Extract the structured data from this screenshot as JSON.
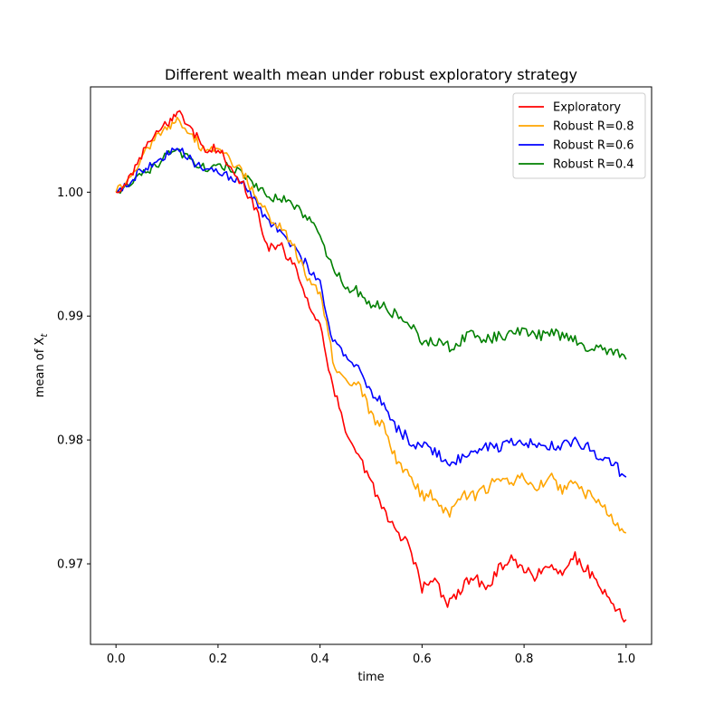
{
  "chart_data": {
    "type": "line",
    "title": "Different wealth mean under robust exploratory strategy",
    "xlabel": "time",
    "ylabel": "mean of X",
    "ylabel_subscript": "t",
    "xlim": [
      -0.05,
      1.05
    ],
    "ylim": [
      0.9635,
      1.0085
    ],
    "xticks": [
      0.0,
      0.2,
      0.4,
      0.6,
      0.8,
      1.0
    ],
    "xtick_labels": [
      "0.0",
      "0.2",
      "0.4",
      "0.6",
      "0.8",
      "1.0"
    ],
    "yticks": [
      0.97,
      0.98,
      0.99,
      1.0
    ],
    "ytick_labels": [
      "0.97",
      "0.98",
      "0.99",
      "1.00"
    ],
    "grid": false,
    "legend_position": "top-right",
    "x": [
      0.0,
      0.025,
      0.05,
      0.075,
      0.1,
      0.12,
      0.15,
      0.175,
      0.2,
      0.225,
      0.25,
      0.275,
      0.3,
      0.325,
      0.35,
      0.375,
      0.4,
      0.425,
      0.45,
      0.475,
      0.5,
      0.525,
      0.55,
      0.575,
      0.6,
      0.625,
      0.65,
      0.675,
      0.7,
      0.725,
      0.75,
      0.775,
      0.8,
      0.825,
      0.85,
      0.875,
      0.9,
      0.925,
      0.95,
      0.975,
      1.0
    ],
    "series": [
      {
        "name": "Exploratory",
        "color": "#ff0000",
        "values": [
          1.0,
          1.001,
          1.003,
          1.0045,
          1.0055,
          1.0065,
          1.005,
          1.0035,
          1.0035,
          1.002,
          1.0005,
          0.9985,
          0.9955,
          0.9955,
          0.994,
          0.9915,
          0.989,
          0.9845,
          0.9805,
          0.979,
          0.9765,
          0.9745,
          0.9725,
          0.9715,
          0.968,
          0.969,
          0.9665,
          0.968,
          0.969,
          0.968,
          0.9695,
          0.9705,
          0.9695,
          0.969,
          0.97,
          0.969,
          0.9705,
          0.9695,
          0.968,
          0.9665,
          0.9655
        ]
      },
      {
        "name": "Robust R=0.8",
        "color": "#ffa500",
        "values": [
          1.0,
          1.001,
          1.0028,
          1.0042,
          1.0052,
          1.0058,
          1.0045,
          1.0033,
          1.0035,
          1.0025,
          1.0015,
          0.9995,
          0.998,
          0.997,
          0.9955,
          0.993,
          0.992,
          0.9865,
          0.9845,
          0.9845,
          0.982,
          0.981,
          0.9785,
          0.977,
          0.9755,
          0.9755,
          0.974,
          0.9755,
          0.9755,
          0.976,
          0.977,
          0.9765,
          0.977,
          0.976,
          0.977,
          0.976,
          0.9765,
          0.9755,
          0.975,
          0.9735,
          0.9725
        ]
      },
      {
        "name": "Robust R=0.6",
        "color": "#0000ff",
        "values": [
          1.0,
          1.0008,
          1.0018,
          1.0025,
          1.003,
          1.0035,
          1.0025,
          1.0018,
          1.0015,
          1.0012,
          1.001,
          0.999,
          0.9975,
          0.997,
          0.9955,
          0.994,
          0.9925,
          0.988,
          0.9865,
          0.986,
          0.984,
          0.983,
          0.981,
          0.98,
          0.9795,
          0.979,
          0.978,
          0.9785,
          0.979,
          0.9795,
          0.9795,
          0.98,
          0.98,
          0.9795,
          0.9795,
          0.9795,
          0.98,
          0.9795,
          0.9785,
          0.978,
          0.977
        ]
      },
      {
        "name": "Robust R=0.4",
        "color": "#008000",
        "values": [
          1.0,
          1.0005,
          1.0015,
          1.002,
          1.003,
          1.0032,
          1.0025,
          1.002,
          1.002,
          1.002,
          1.0015,
          1.0005,
          0.9995,
          0.9995,
          0.999,
          0.998,
          0.9965,
          0.994,
          0.9925,
          0.992,
          0.991,
          0.991,
          0.99,
          0.9895,
          0.988,
          0.988,
          0.9875,
          0.988,
          0.9885,
          0.988,
          0.9885,
          0.9885,
          0.989,
          0.9885,
          0.9885,
          0.9885,
          0.988,
          0.9875,
          0.9875,
          0.987,
          0.9865
        ]
      }
    ]
  }
}
